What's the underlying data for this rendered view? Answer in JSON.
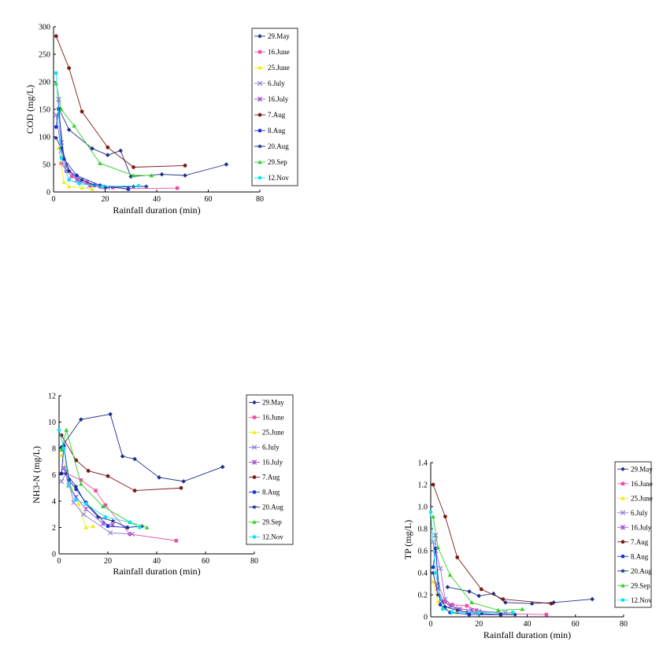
{
  "series_styles": [
    {
      "name": "29.May",
      "color": "#1f2f86",
      "marker": "diamond"
    },
    {
      "name": "16.June",
      "color": "#ee4fa6",
      "marker": "square"
    },
    {
      "name": "25.June",
      "color": "#f2ea11",
      "marker": "triangle"
    },
    {
      "name": "6.July",
      "color": "#8a7ad6",
      "marker": "x"
    },
    {
      "name": "16.July",
      "color": "#9a55d0",
      "marker": "star-x"
    },
    {
      "name": "7.Aug",
      "color": "#7a1a14",
      "marker": "circle"
    },
    {
      "name": "8.Aug",
      "color": "#1533d4",
      "marker": "circle"
    },
    {
      "name": "20.Aug",
      "color": "#142c86",
      "marker": "star"
    },
    {
      "name": "29.Sep",
      "color": "#2fd02a",
      "marker": "triangle"
    },
    {
      "name": "12.Nov",
      "color": "#12e0f0",
      "marker": "circle"
    }
  ],
  "chart_data": [
    {
      "type": "line",
      "xlabel": "Rainfall duration (min)",
      "ylabel": "COD (mg/L)",
      "xlim": [
        0,
        80
      ],
      "ylim": [
        0,
        300
      ],
      "xticks": [
        0,
        20,
        40,
        60,
        80
      ],
      "yticks": [
        0,
        50,
        100,
        150,
        200,
        250,
        300
      ],
      "legend": "right",
      "series": [
        {
          "name": "29.May",
          "x": [
            2,
            6,
            15,
            21,
            26,
            30,
            42,
            51,
            67
          ],
          "y": [
            152,
            113,
            79,
            67,
            75,
            28,
            32,
            30,
            50
          ]
        },
        {
          "name": "16.June",
          "x": [
            3,
            5,
            7,
            13,
            18,
            23,
            29,
            48
          ],
          "y": [
            52,
            38,
            28,
            18,
            10,
            8,
            6,
            7
          ]
        },
        {
          "name": "25.June",
          "x": [
            2,
            4,
            6,
            11,
            15
          ],
          "y": [
            80,
            18,
            10,
            8,
            5
          ]
        },
        {
          "name": "6.July",
          "x": [
            1,
            3,
            5,
            10,
            15,
            21
          ],
          "y": [
            140,
            75,
            40,
            20,
            12,
            8
          ]
        },
        {
          "name": "16.July",
          "x": [
            2,
            3,
            5,
            9,
            14,
            19
          ],
          "y": [
            168,
            90,
            48,
            22,
            12,
            9
          ]
        },
        {
          "name": "7.Aug",
          "x": [
            1,
            6,
            11,
            21,
            31,
            51
          ],
          "y": [
            283,
            225,
            146,
            81,
            45,
            48
          ]
        },
        {
          "name": "8.Aug",
          "x": [
            1,
            2,
            4,
            9,
            18,
            29
          ],
          "y": [
            118,
            150,
            60,
            30,
            12,
            5
          ]
        },
        {
          "name": "20.Aug",
          "x": [
            1,
            3,
            6,
            11,
            16,
            20,
            31,
            36
          ],
          "y": [
            98,
            80,
            38,
            22,
            12,
            8,
            10,
            10
          ]
        },
        {
          "name": "29.Sep",
          "x": [
            1,
            3,
            8,
            18,
            31,
            38
          ],
          "y": [
            197,
            150,
            120,
            52,
            30,
            30
          ]
        },
        {
          "name": "12.Nov",
          "x": [
            1,
            3,
            6,
            10,
            19,
            33
          ],
          "y": [
            216,
            62,
            22,
            15,
            10,
            11
          ]
        }
      ]
    },
    {
      "type": "line",
      "xlabel": "Rainfall duration (min)",
      "ylabel": "NH3-N (mg/L)",
      "xlim": [
        0,
        80
      ],
      "ylim": [
        0,
        12
      ],
      "xticks": [
        0,
        20,
        40,
        60,
        80
      ],
      "yticks": [
        0,
        2,
        4,
        6,
        8,
        10,
        12
      ],
      "legend": "right",
      "series": [
        {
          "name": "29.May",
          "x": [
            1,
            9,
            21,
            26,
            31,
            41,
            51,
            67
          ],
          "y": [
            8.1,
            10.2,
            10.6,
            7.4,
            7.2,
            5.8,
            5.5,
            6.6
          ]
        },
        {
          "name": "16.June",
          "x": [
            3,
            9,
            15,
            19,
            29,
            48
          ],
          "y": [
            6.1,
            5.6,
            4.8,
            3.7,
            1.5,
            1.0
          ]
        },
        {
          "name": "25.June",
          "x": [
            1,
            3,
            5,
            8,
            11,
            14
          ],
          "y": [
            7.5,
            6.3,
            5.0,
            3.8,
            2.0,
            2.1
          ]
        },
        {
          "name": "6.July",
          "x": [
            1,
            3,
            6,
            10,
            21,
            30
          ],
          "y": [
            5.5,
            6.2,
            3.9,
            3.0,
            1.6,
            1.5
          ]
        },
        {
          "name": "16.July",
          "x": [
            2,
            4,
            7,
            11,
            18,
            22
          ],
          "y": [
            6.5,
            5.2,
            4.3,
            3.4,
            2.3,
            2.2
          ]
        },
        {
          "name": "7.Aug",
          "x": [
            1,
            7,
            12,
            20,
            31,
            50
          ],
          "y": [
            9.0,
            7.1,
            6.3,
            5.9,
            4.8,
            5.0
          ]
        },
        {
          "name": "8.Aug",
          "x": [
            1,
            2,
            4,
            7,
            11,
            20,
            28
          ],
          "y": [
            6.1,
            8.2,
            5.6,
            4.9,
            3.9,
            2.1,
            2.0
          ]
        },
        {
          "name": "20.Aug",
          "x": [
            1,
            3,
            7,
            11,
            16,
            22,
            28,
            34
          ],
          "y": [
            6.1,
            6.1,
            5.1,
            3.8,
            2.8,
            2.5,
            2.0,
            2.1
          ]
        },
        {
          "name": "29.Sep",
          "x": [
            1,
            3,
            9,
            18,
            29,
            36
          ],
          "y": [
            7.9,
            9.4,
            5.3,
            3.6,
            2.4,
            2.0
          ]
        },
        {
          "name": "12.Nov",
          "x": [
            0,
            2,
            4,
            7,
            11,
            19,
            29,
            33
          ],
          "y": [
            9.4,
            8.0,
            5.2,
            4.1,
            3.8,
            2.8,
            2.4,
            2.0
          ]
        }
      ]
    },
    {
      "type": "line",
      "xlabel": "Rainfall duration (min)",
      "ylabel": "TP (mg/L)",
      "xlim": [
        0,
        80
      ],
      "ylim": [
        0,
        1.4
      ],
      "xticks": [
        0,
        20,
        40,
        60,
        80
      ],
      "yticks": [
        0,
        0.2,
        0.4,
        0.6,
        0.8,
        1.0,
        1.2,
        1.4
      ],
      "legend": "right",
      "series": [
        {
          "name": "29.May",
          "x": [
            7,
            16,
            20,
            26,
            31,
            42,
            51,
            67
          ],
          "y": [
            0.27,
            0.23,
            0.19,
            0.21,
            0.13,
            0.12,
            0.13,
            0.16
          ]
        },
        {
          "name": "16.June",
          "x": [
            3,
            6,
            9,
            15,
            19,
            29,
            48
          ],
          "y": [
            0.3,
            0.14,
            0.11,
            0.1,
            0.06,
            0.03,
            0.02
          ]
        },
        {
          "name": "25.June",
          "x": [
            1,
            3,
            5,
            8,
            11
          ],
          "y": [
            0.32,
            0.14,
            0.08,
            0.05,
            0.04
          ]
        },
        {
          "name": "6.July",
          "x": [
            1,
            2,
            4,
            6,
            10,
            20,
            31
          ],
          "y": [
            0.68,
            0.6,
            0.44,
            0.16,
            0.08,
            0.05,
            0.04
          ]
        },
        {
          "name": "16.July",
          "x": [
            2,
            3,
            5,
            8,
            12,
            17
          ],
          "y": [
            0.74,
            0.26,
            0.14,
            0.1,
            0.07,
            0.06
          ]
        },
        {
          "name": "7.Aug",
          "x": [
            1,
            6,
            11,
            21,
            30,
            50
          ],
          "y": [
            1.2,
            0.91,
            0.54,
            0.25,
            0.16,
            0.12
          ]
        },
        {
          "name": "8.Aug",
          "x": [
            1,
            2,
            4,
            8,
            16,
            29
          ],
          "y": [
            0.45,
            0.62,
            0.11,
            0.04,
            0.02,
            0.02
          ]
        },
        {
          "name": "20.Aug",
          "x": [
            1,
            3,
            6,
            11,
            15,
            21,
            29,
            35
          ],
          "y": [
            0.4,
            0.2,
            0.09,
            0.06,
            0.04,
            0.03,
            0.02,
            0.02
          ]
        },
        {
          "name": "29.Sep",
          "x": [
            1,
            3,
            8,
            17,
            28,
            38
          ],
          "y": [
            0.91,
            0.63,
            0.38,
            0.13,
            0.06,
            0.07
          ]
        },
        {
          "name": "12.Nov",
          "x": [
            0,
            2,
            5,
            9,
            20,
            34
          ],
          "y": [
            0.95,
            0.4,
            0.07,
            0.04,
            0.04,
            0.04
          ]
        }
      ]
    }
  ]
}
